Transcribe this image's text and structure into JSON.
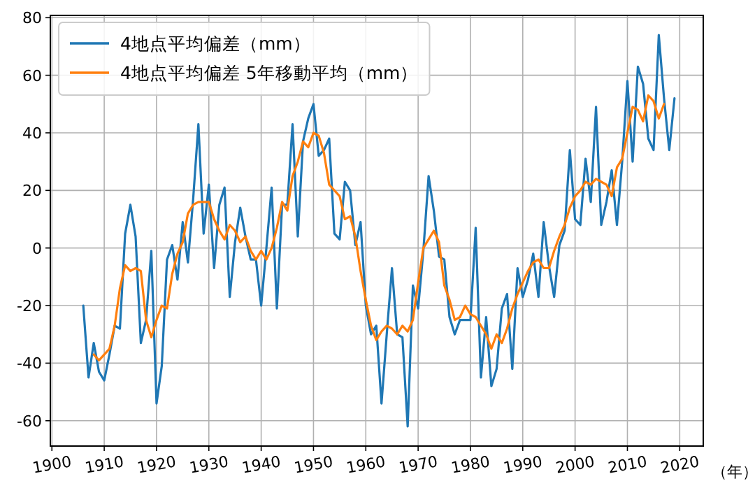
{
  "chart_data": {
    "type": "line",
    "xlabel": "（年）",
    "legend": "top left",
    "grid": true,
    "xlim": [
      1899.7,
      2024.5
    ],
    "ylim": [
      -68.8,
      80.8
    ],
    "xticks": [
      1900,
      1910,
      1920,
      1930,
      1940,
      1950,
      1960,
      1970,
      1980,
      1990,
      2000,
      2010,
      2020
    ],
    "yticks": [
      -60,
      -40,
      -20,
      0,
      20,
      40,
      60,
      80
    ],
    "series": [
      {
        "name": "4地点平均偏差（mm）",
        "color": "#1f77b4",
        "x": [
          1906,
          1907,
          1908,
          1909,
          1910,
          1911,
          1912,
          1913,
          1914,
          1915,
          1916,
          1917,
          1918,
          1919,
          1920,
          1921,
          1922,
          1923,
          1924,
          1925,
          1926,
          1927,
          1928,
          1929,
          1930,
          1931,
          1932,
          1933,
          1934,
          1935,
          1936,
          1937,
          1938,
          1939,
          1940,
          1941,
          1942,
          1943,
          1944,
          1945,
          1946,
          1947,
          1948,
          1949,
          1950,
          1951,
          1952,
          1953,
          1954,
          1955,
          1956,
          1957,
          1958,
          1959,
          1960,
          1961,
          1962,
          1963,
          1964,
          1965,
          1966,
          1967,
          1968,
          1969,
          1970,
          1971,
          1972,
          1973,
          1974,
          1975,
          1976,
          1977,
          1978,
          1979,
          1980,
          1981,
          1982,
          1983,
          1984,
          1985,
          1986,
          1987,
          1988,
          1989,
          1990,
          1991,
          1992,
          1993,
          1994,
          1995,
          1996,
          1997,
          1998,
          1999,
          2000,
          2001,
          2002,
          2003,
          2004,
          2005,
          2006,
          2007,
          2008,
          2009,
          2010,
          2011,
          2012,
          2013,
          2014,
          2015,
          2016,
          2017,
          2018,
          2019
        ],
        "values": [
          -20,
          -45,
          -33,
          -43,
          -46,
          -37,
          -27,
          -28,
          5,
          15,
          4,
          -33,
          -25,
          -1,
          -54,
          -41,
          -4,
          1,
          -11,
          9,
          -5,
          17,
          43,
          5,
          22,
          -7,
          15,
          21,
          -17,
          2,
          14,
          4,
          -4,
          -4,
          -20,
          0,
          21,
          -21,
          15,
          15,
          43,
          4,
          37,
          45,
          50,
          32,
          34,
          38,
          5,
          3,
          23,
          20,
          1,
          9,
          -20,
          -30,
          -27,
          -54,
          -30,
          -7,
          -30,
          -31,
          -62,
          -13,
          -21,
          -1,
          25,
          13,
          -3,
          -4,
          -24,
          -30,
          -25,
          -25,
          -25,
          7,
          -45,
          -24,
          -48,
          -42,
          -21,
          -16,
          -42,
          -7,
          -17,
          -11,
          -2,
          -17,
          9,
          -6,
          -17,
          1,
          6,
          34,
          10,
          8,
          31,
          16,
          49,
          8,
          16,
          27,
          8,
          30,
          58,
          30,
          63,
          57,
          38,
          34,
          74,
          52,
          34,
          52
        ]
      },
      {
        "name": "4地点平均偏差 5年移動平均（mm）",
        "color": "#ff7f0e",
        "x": [
          1908,
          1909,
          1910,
          1911,
          1912,
          1913,
          1914,
          1915,
          1916,
          1917,
          1918,
          1919,
          1920,
          1921,
          1922,
          1923,
          1924,
          1925,
          1926,
          1927,
          1928,
          1929,
          1930,
          1931,
          1932,
          1933,
          1934,
          1935,
          1936,
          1937,
          1938,
          1939,
          1940,
          1941,
          1942,
          1943,
          1944,
          1945,
          1946,
          1947,
          1948,
          1949,
          1950,
          1951,
          1952,
          1953,
          1954,
          1955,
          1956,
          1957,
          1958,
          1959,
          1960,
          1961,
          1962,
          1963,
          1964,
          1965,
          1966,
          1967,
          1968,
          1969,
          1970,
          1971,
          1972,
          1973,
          1974,
          1975,
          1976,
          1977,
          1978,
          1979,
          1980,
          1981,
          1982,
          1983,
          1984,
          1985,
          1986,
          1987,
          1988,
          1989,
          1990,
          1991,
          1992,
          1993,
          1994,
          1995,
          1996,
          1997,
          1998,
          1999,
          2000,
          2001,
          2002,
          2003,
          2004,
          2005,
          2006,
          2007,
          2008,
          2009,
          2010,
          2011,
          2012,
          2013,
          2014,
          2015,
          2016,
          2017
        ],
        "values": [
          -37,
          -39,
          -37,
          -35,
          -27,
          -14,
          -6,
          -8,
          -7,
          -8,
          -25,
          -31,
          -25,
          -20,
          -21,
          -9,
          -2,
          2,
          12,
          15,
          16,
          16,
          16,
          10,
          6,
          3,
          8,
          6,
          2,
          4,
          -1,
          -4,
          -1,
          -4,
          0,
          7,
          16,
          13,
          25,
          30,
          37,
          35,
          40,
          39,
          33,
          22,
          20,
          18,
          10,
          11,
          4,
          -8,
          -18,
          -27,
          -32,
          -29,
          -27,
          -28,
          -30,
          -27,
          -29,
          -25,
          -12,
          0,
          3,
          6,
          2,
          -13,
          -18,
          -25,
          -24,
          -20,
          -23,
          -24,
          -27,
          -30,
          -35,
          -30,
          -33,
          -28,
          -21,
          -16,
          -12,
          -8,
          -5,
          -4,
          -7,
          -7,
          -1,
          4,
          8,
          14,
          18,
          20,
          23,
          22,
          24,
          23,
          22,
          18,
          28,
          31,
          40,
          49,
          48,
          44,
          53,
          51,
          45,
          50
        ]
      }
    ]
  }
}
